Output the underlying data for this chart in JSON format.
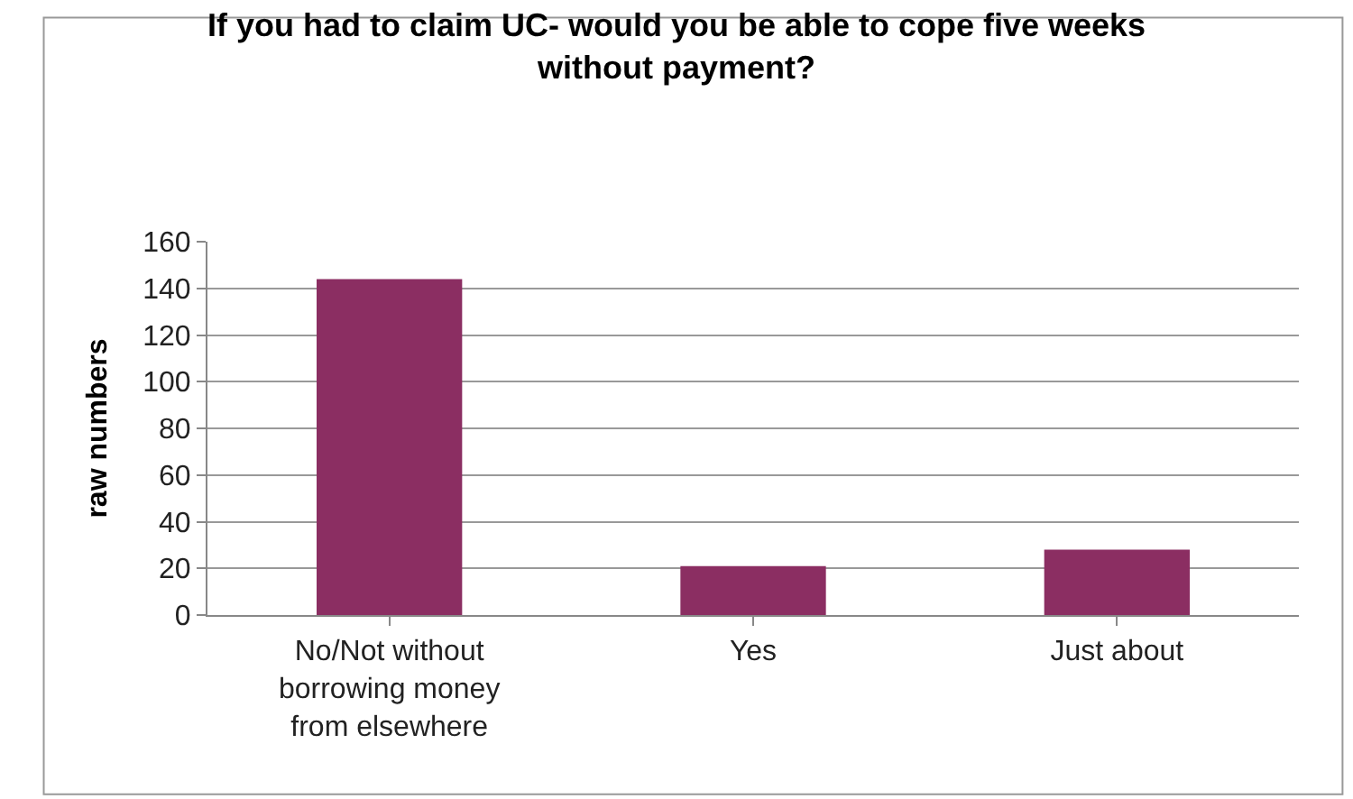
{
  "chart_data": {
    "type": "bar",
    "title": "If you had to claim UC- would you be able to cope five weeks without payment?",
    "ylabel": "raw numbers",
    "categories": [
      "No/Not without borrowing money from elsewhere",
      "Yes",
      "Just about"
    ],
    "values": [
      144,
      21,
      28
    ],
    "color": "#8b2e62",
    "ylim": [
      0,
      160
    ],
    "yticks": [
      0,
      20,
      40,
      60,
      80,
      100,
      120,
      140,
      160
    ],
    "grid": "y",
    "legend": false
  }
}
